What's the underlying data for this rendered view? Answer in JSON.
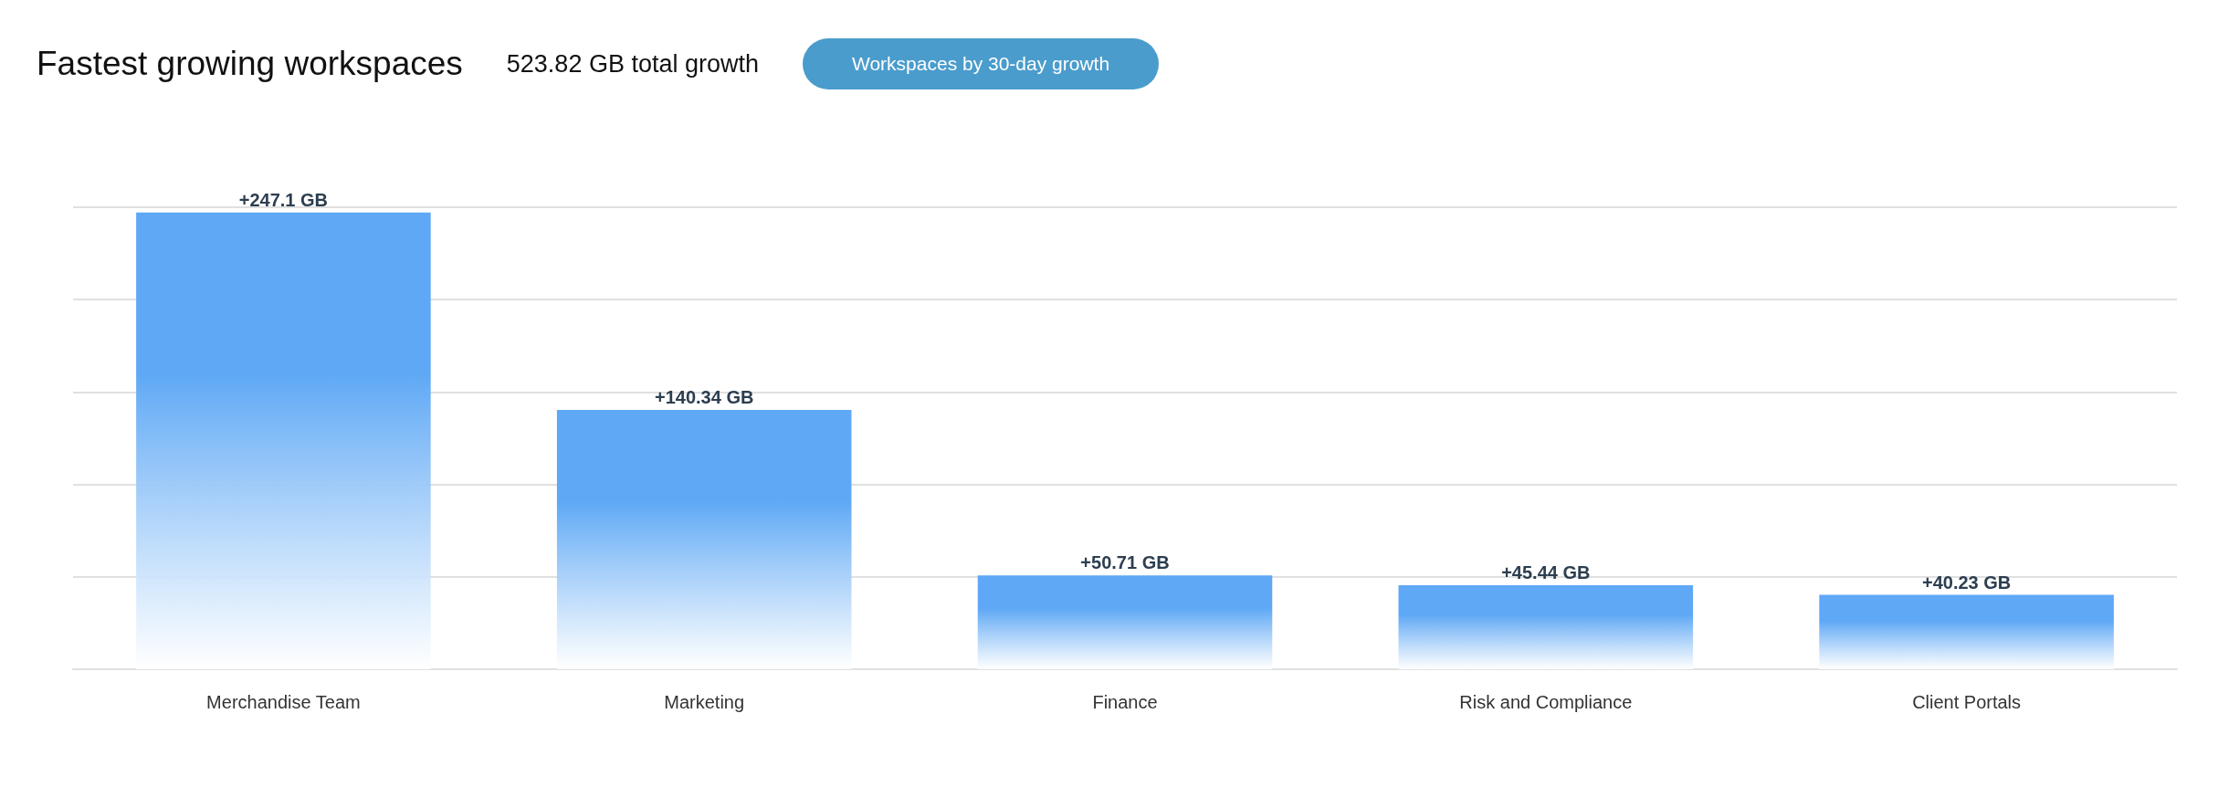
{
  "chart_data": {
    "type": "bar",
    "title": "Fastest growing workspaces",
    "subtitle": "523.82 GB total growth",
    "annotations": [
      "Workspaces by 30-day growth"
    ],
    "categories": [
      "Merchandise Team",
      "Marketing",
      "Finance",
      "Risk and Compliance",
      "Client Portals"
    ],
    "values": [
      247.1,
      140.34,
      50.71,
      45.44,
      40.23
    ],
    "value_labels": [
      "+247.1 GB",
      "+140.34 GB",
      "+50.71 GB",
      "+45.44 GB",
      "+40.23 GB"
    ],
    "color": "#5ea8f5",
    "ylim": [
      0,
      250
    ],
    "yticks": [
      {
        "value": 0,
        "label": null
      },
      {
        "value": 50,
        "label": null
      },
      {
        "value": 100,
        "label": null
      },
      {
        "value": 150,
        "label": null
      },
      {
        "value": 200,
        "label": null
      },
      {
        "value": 250,
        "label": null
      }
    ],
    "grid": "y",
    "tick_labels": "x"
  }
}
